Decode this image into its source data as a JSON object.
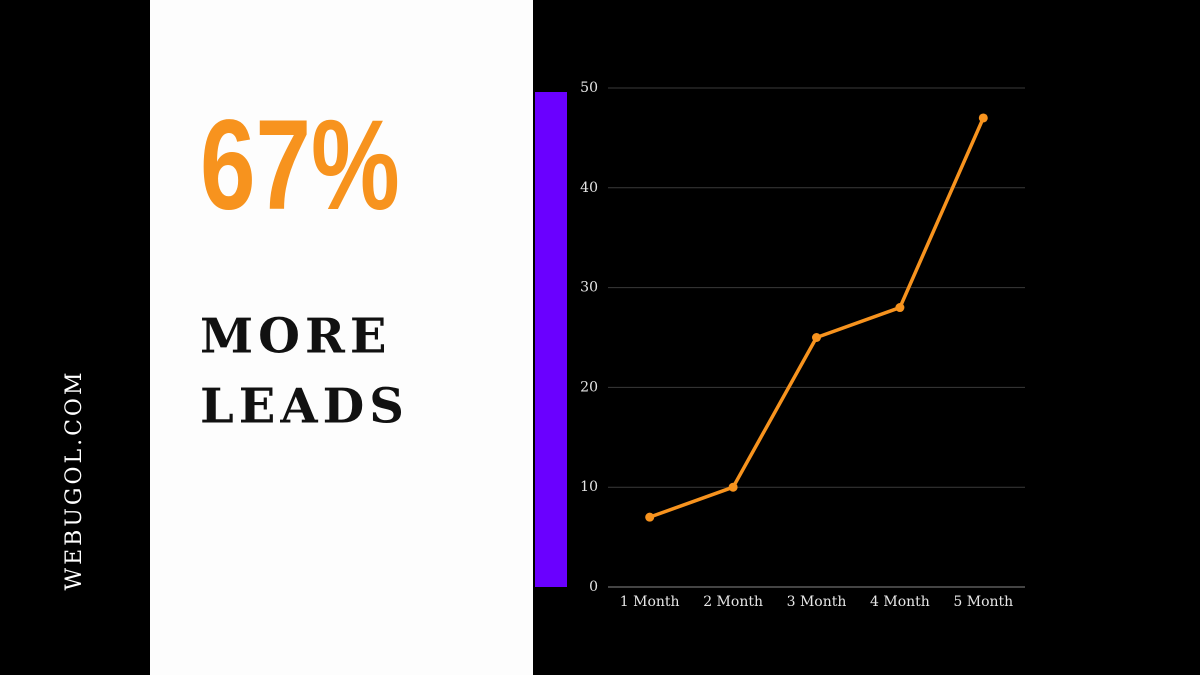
{
  "watermark": "WEBUGOL.COM",
  "headline": {
    "stat": "67%",
    "lines": [
      "MORE",
      "LEADS"
    ]
  },
  "chart_data": {
    "type": "line",
    "categories": [
      "1 Month",
      "2 Month",
      "3 Month",
      "4 Month",
      "5 Month"
    ],
    "values": [
      7,
      10,
      25,
      28,
      47
    ],
    "color": "#f7931e",
    "ylim": [
      0,
      50
    ],
    "yticks": [
      0,
      10,
      20,
      30,
      40,
      50
    ],
    "grid": true
  }
}
